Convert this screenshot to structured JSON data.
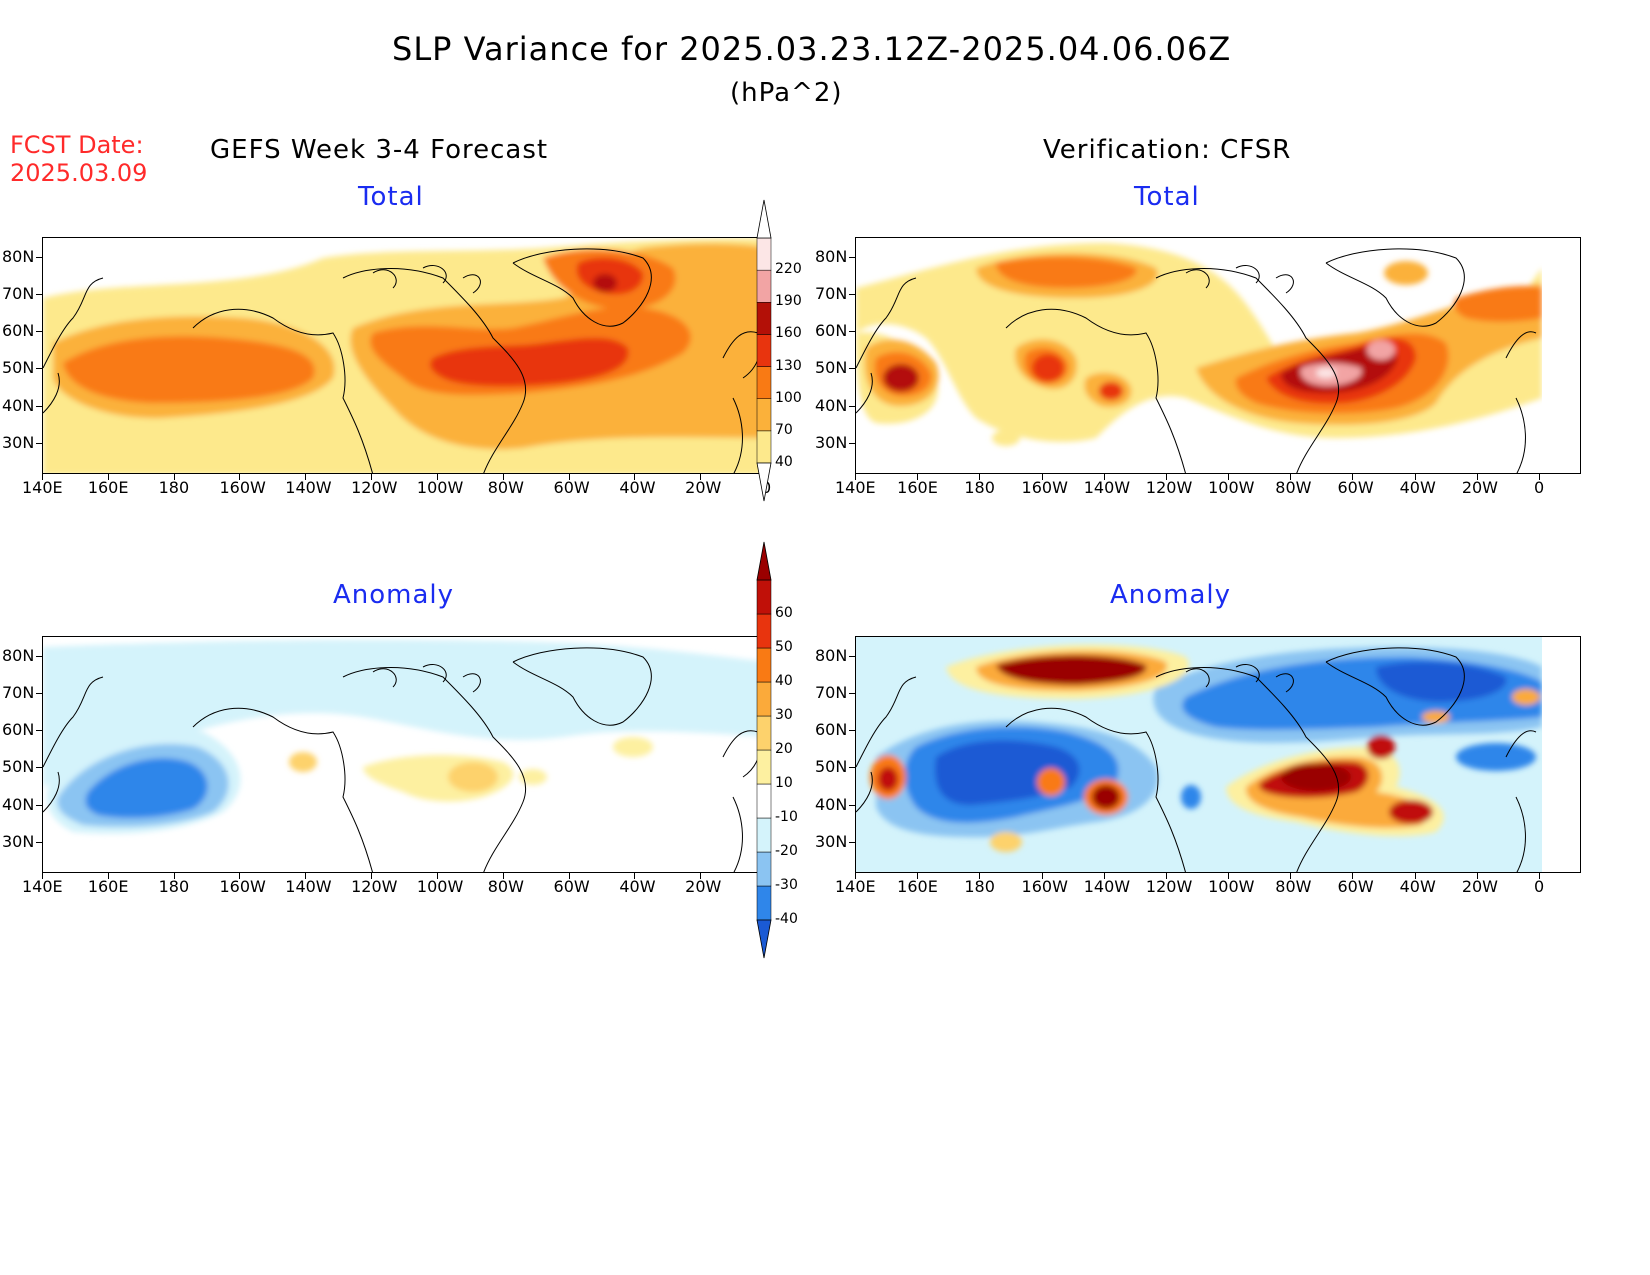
{
  "title": "SLP Variance for 2025.03.23.12Z-2025.04.06.06Z",
  "units": "(hPa^2)",
  "fcst_label": "FCST Date:",
  "fcst_date": "2025.03.09",
  "left_header": "GEFS Week 3-4 Forecast",
  "right_header": "Verification: CFSR",
  "panel_titles": {
    "top_left": "Total",
    "top_right": "Total",
    "bottom_left": "Anomaly",
    "bottom_right": "Anomaly"
  },
  "lat_labels": [
    "80N",
    "70N",
    "60N",
    "50N",
    "40N",
    "30N"
  ],
  "lon_labels": [
    "140E",
    "160E",
    "180",
    "160W",
    "140W",
    "120W",
    "100W",
    "80W",
    "60W",
    "40W",
    "20W",
    "0"
  ],
  "total_colorbar": {
    "levels": [
      "40",
      "70",
      "100",
      "130",
      "160",
      "190",
      "220"
    ],
    "colors": [
      "#fde98c",
      "#fbb13a",
      "#f97a14",
      "#e8340e",
      "#b31007",
      "#f2a4a4",
      "#fce6e6"
    ]
  },
  "anomaly_colorbar": {
    "levels": [
      "-40",
      "-30",
      "-20",
      "-10",
      "10",
      "20",
      "30",
      "40",
      "50",
      "60"
    ],
    "colors": [
      "#1a5ad4",
      "#2f86ea",
      "#8bc4f2",
      "#d4f3fb",
      "#ffffff",
      "#fdf0a0",
      "#fdd26c",
      "#fbaa3a",
      "#f97a14",
      "#e8340e",
      "#c01008",
      "#9a0000"
    ]
  },
  "chart_data": [
    {
      "type": "heatmap",
      "title": "Total",
      "panel": "GEFS Week 3-4 Forecast",
      "lon_range": [
        "140E",
        "0"
      ],
      "lat_range": [
        "25N",
        "85N"
      ],
      "features": [
        {
          "region": "North Pacific 160E-140W, 40-55N",
          "value": 100
        },
        {
          "region": "Eastern North America / Great Lakes 100W-60W, 45-55N",
          "value": 130
        },
        {
          "region": "South Greenland 40W, 70-75N",
          "value": 160
        },
        {
          "region": "North Atlantic background",
          "value": 70
        }
      ]
    },
    {
      "type": "heatmap",
      "title": "Total",
      "panel": "Verification: CFSR",
      "lon_range": [
        "140E",
        "0"
      ],
      "lat_range": [
        "25N",
        "85N"
      ],
      "features": [
        {
          "region": "Arctic 150W, 78N",
          "value": 130
        },
        {
          "region": "Kamchatka 150E, 45N",
          "value": 160
        },
        {
          "region": "Gulf of Alaska 160W, 48N",
          "value": 130
        },
        {
          "region": "NE North America 75W-55W, 45-55N",
          "value": 220
        },
        {
          "region": "North Atlantic 40W-0, 50-60N",
          "value": 100
        }
      ]
    },
    {
      "type": "heatmap",
      "title": "Anomaly",
      "panel": "GEFS Week 3-4 Forecast",
      "lon_range": [
        "140E",
        "0"
      ],
      "lat_range": [
        "25N",
        "85N"
      ],
      "features": [
        {
          "region": "North Pacific 160E-180, 40-50N",
          "value": -30
        },
        {
          "region": "Great Lakes 85W, 48N",
          "value": 20
        },
        {
          "region": "Arctic / Canada background",
          "value": -10
        }
      ]
    },
    {
      "type": "heatmap",
      "title": "Anomaly",
      "panel": "Verification: CFSR",
      "lon_range": [
        "140E",
        "0"
      ],
      "lat_range": [
        "25N",
        "85N"
      ],
      "features": [
        {
          "region": "Arctic 150W, 78N",
          "value": 60
        },
        {
          "region": "North Pacific 170E-160W, 35-60N",
          "value": -30
        },
        {
          "region": "Greenland / Canadian Arctic 100W-10W, 65-80N",
          "value": -30
        },
        {
          "region": "NE North America 75W, 48N",
          "value": 60
        },
        {
          "region": "Gulf of Alaska 140W, 42N",
          "value": 60
        },
        {
          "region": "Kamchatka 150E, 45N",
          "value": 50
        },
        {
          "region": "Mid Atlantic 45W, 40N",
          "value": 50
        }
      ]
    }
  ]
}
